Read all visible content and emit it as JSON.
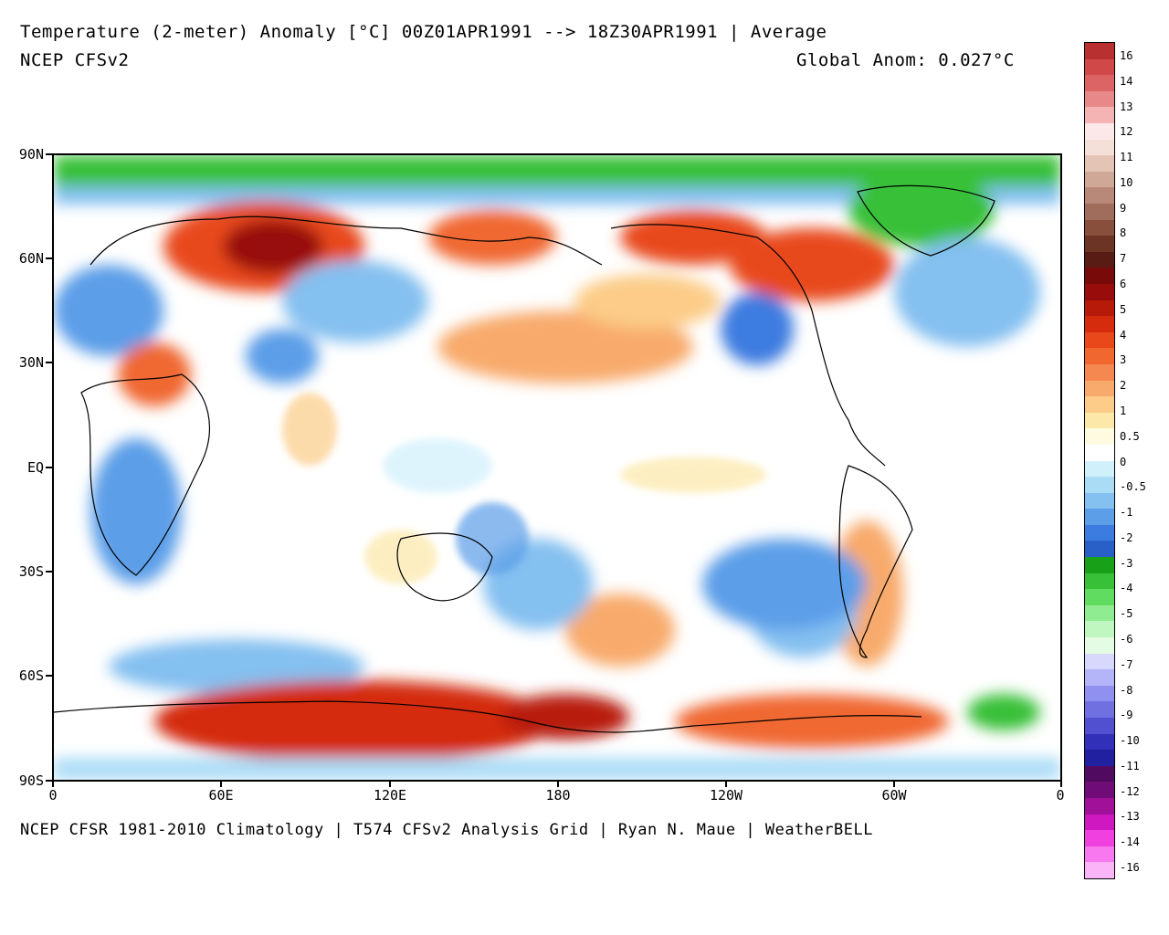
{
  "header": {
    "title": "Temperature (2-meter) Anomaly  [°C] 00Z01APR1991 --> 18Z30APR1991 | Average",
    "model": "NCEP CFSv2",
    "global_anom": "Global Anom: 0.027°C"
  },
  "footer": "NCEP CFSR 1981-2010 Climatology | T574 CFSv2 Analysis Grid | Ryan N. Maue | WeatherBELL",
  "axes": {
    "lat_labels": [
      "90N",
      "60N",
      "30N",
      "EQ",
      "30S",
      "60S",
      "90S"
    ],
    "lon_labels": [
      "0",
      "60E",
      "120E",
      "180",
      "120W",
      "60W",
      "0"
    ]
  },
  "legend": {
    "labels": [
      "16",
      "14",
      "13",
      "12",
      "11",
      "10",
      "9",
      "8",
      "7",
      "6",
      "5",
      "4",
      "3",
      "2",
      "1",
      "0.5",
      "0",
      "-0.5",
      "-1",
      "-2",
      "-3",
      "-4",
      "-5",
      "-6",
      "-7",
      "-8",
      "-9",
      "-10",
      "-11",
      "-12",
      "-13",
      "-14",
      "-16"
    ],
    "colors": [
      "#b83030",
      "#d04848",
      "#dc6464",
      "#e88888",
      "#f4b4b4",
      "#fce8e8",
      "#f4e0d8",
      "#e4c4b4",
      "#d0a898",
      "#b88878",
      "#a06c5c",
      "#88503c",
      "#6c3424",
      "#581c14",
      "#780a0a",
      "#980c0c",
      "#b81a0a",
      "#d42c0c",
      "#e8481a",
      "#f06830",
      "#f48850",
      "#f8aa6c",
      "#fccc88",
      "#fce8a8",
      "#fffbe0",
      "#ffffff",
      "#d0f0fc",
      "#aadcf6",
      "#84c0f0",
      "#5c9ee8",
      "#3c7ce0",
      "#2860c8",
      "#18a018",
      "#38c038",
      "#60dc60",
      "#90ec90",
      "#c0f6c0",
      "#e4fce4",
      "#d8d8fc",
      "#b4b4f8",
      "#9090f0",
      "#7070e0",
      "#5050d0",
      "#3030b8",
      "#2020a0",
      "#500a60",
      "#700c78",
      "#a01098",
      "#d018c0",
      "#f040e0",
      "#f878f0",
      "#fcb4f8"
    ]
  },
  "icons": {
    "map": "world-temperature-anomaly-map"
  }
}
